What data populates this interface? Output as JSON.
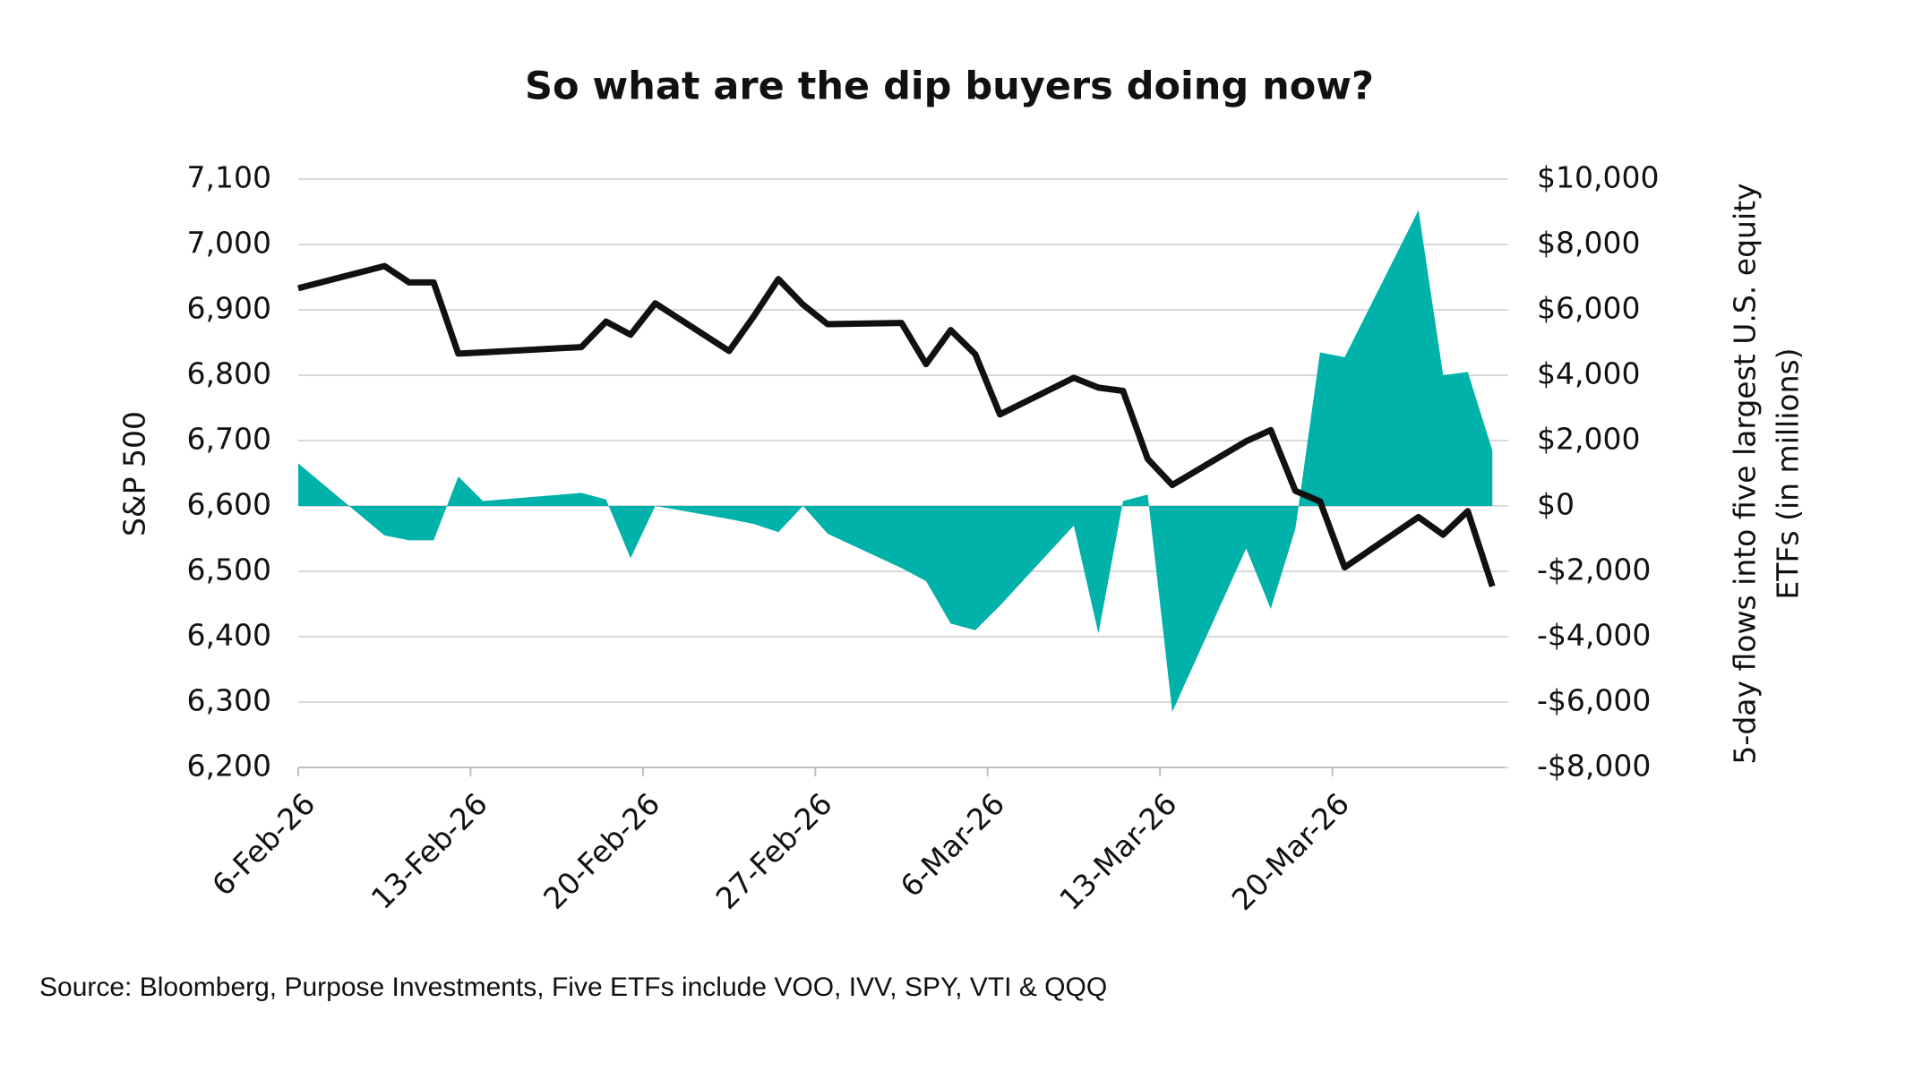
{
  "chart_data": {
    "type": "line_area",
    "title": "So what are the dip buyers doing now?",
    "y_label": "S&P 500",
    "y2_label_lines": [
      "5-day flows into five largest U.S. equity",
      "ETFs (in millions)"
    ],
    "source": "Source: Bloomberg, Purpose Investments, Five ETFs include VOO, IVV, SPY, VTI & QQQ",
    "x": [
      "6-Feb-26",
      "9-Feb-26",
      "10-Feb-26",
      "11-Feb-26",
      "12-Feb-26",
      "13-Feb-26",
      "17-Feb-26",
      "18-Feb-26",
      "19-Feb-26",
      "20-Feb-26",
      "23-Feb-26",
      "24-Feb-26",
      "25-Feb-26",
      "26-Feb-26",
      "27-Feb-26",
      "2-Mar-26",
      "3-Mar-26",
      "4-Mar-26",
      "5-Mar-26",
      "6-Mar-26",
      "9-Mar-26",
      "10-Mar-26",
      "11-Mar-26",
      "12-Mar-26",
      "13-Mar-26",
      "16-Mar-26",
      "17-Mar-26",
      "18-Mar-26",
      "19-Mar-26",
      "20-Mar-26",
      "23-Mar-26",
      "24-Mar-26",
      "25-Mar-26",
      "26-Mar-26"
    ],
    "xlim": [
      "6-Feb-26",
      "27-Mar-26"
    ],
    "xticks": [
      "6-Feb-26",
      "13-Feb-26",
      "20-Feb-26",
      "27-Feb-26",
      "6-Mar-26",
      "13-Mar-26",
      "20-Mar-26"
    ],
    "ylim": [
      6200,
      7100
    ],
    "yticks": [
      {
        "value": 6200,
        "label": "6,200"
      },
      {
        "value": 6300,
        "label": "6,300"
      },
      {
        "value": 6400,
        "label": "6,400"
      },
      {
        "value": 6500,
        "label": "6,500"
      },
      {
        "value": 6600,
        "label": "6,600"
      },
      {
        "value": 6700,
        "label": "6,700"
      },
      {
        "value": 6800,
        "label": "6,800"
      },
      {
        "value": 6900,
        "label": "6,900"
      },
      {
        "value": 7000,
        "label": "7,000"
      },
      {
        "value": 7100,
        "label": "7,100"
      }
    ],
    "y2lim": [
      -8000,
      10000
    ],
    "y2ticks": [
      {
        "value": -8000,
        "label": "-$8,000"
      },
      {
        "value": -6000,
        "label": "-$6,000"
      },
      {
        "value": -4000,
        "label": "-$4,000"
      },
      {
        "value": -2000,
        "label": "-$2,000"
      },
      {
        "value": 0,
        "label": "$0"
      },
      {
        "value": 2000,
        "label": "$2,000"
      },
      {
        "value": 4000,
        "label": "$4,000"
      },
      {
        "value": 6000,
        "label": "$6,000"
      },
      {
        "value": 8000,
        "label": "$8,000"
      },
      {
        "value": 10000,
        "label": "$10,000"
      }
    ],
    "grid": true,
    "series": [
      {
        "name": "5-day flows",
        "kind": "area",
        "axis": "y2",
        "color": "#00b2a9",
        "values": [
          1300,
          -900,
          -1050,
          -1050,
          900,
          150,
          400,
          200,
          -1600,
          0,
          -400,
          -550,
          -800,
          0,
          -850,
          -1900,
          -2300,
          -3600,
          -3800,
          -3050,
          -600,
          -3900,
          150,
          350,
          -6300,
          -1300,
          -3150,
          -700,
          4700,
          4550,
          9050,
          4000,
          4100,
          1700
        ]
      },
      {
        "name": "S&P 500",
        "kind": "line",
        "axis": "y",
        "color": "#111111",
        "values": [
          6933,
          6967,
          6942,
          6942,
          6833,
          6835,
          6843,
          6882,
          6862,
          6910,
          6837,
          6890,
          6947,
          6908,
          6878,
          6880,
          6817,
          6869,
          6832,
          6740,
          6796,
          6781,
          6776,
          6672,
          6632,
          6699,
          6716,
          6623,
          6607,
          6506,
          6583,
          6556,
          6592,
          6477
        ]
      }
    ]
  }
}
